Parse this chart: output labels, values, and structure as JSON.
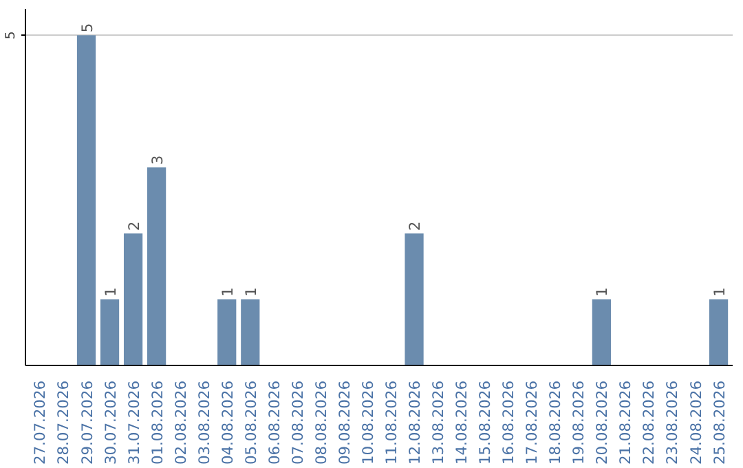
{
  "chart_data": {
    "type": "bar",
    "categories": [
      "27.07.2026",
      "28.07.2026",
      "29.07.2026",
      "30.07.2026",
      "31.07.2026",
      "01.08.2026",
      "02.08.2026",
      "03.08.2026",
      "04.08.2026",
      "05.08.2026",
      "06.08.2026",
      "07.08.2026",
      "08.08.2026",
      "09.08.2026",
      "10.08.2026",
      "11.08.2026",
      "12.08.2026",
      "13.08.2026",
      "14.08.2026",
      "15.08.2026",
      "16.08.2026",
      "17.08.2026",
      "18.08.2026",
      "19.08.2026",
      "20.08.2026",
      "21.08.2026",
      "22.08.2026",
      "23.08.2026",
      "24.08.2026",
      "25.08.2026"
    ],
    "values": [
      0,
      0,
      5,
      1,
      2,
      3,
      0,
      0,
      1,
      1,
      0,
      0,
      0,
      0,
      0,
      0,
      2,
      0,
      0,
      0,
      0,
      0,
      0,
      0,
      1,
      0,
      0,
      0,
      0,
      1
    ],
    "value_labels": [
      null,
      null,
      "5",
      "1",
      "2",
      "3",
      null,
      null,
      "1",
      "1",
      null,
      null,
      null,
      null,
      null,
      null,
      "2",
      null,
      null,
      null,
      null,
      null,
      null,
      null,
      "1",
      null,
      null,
      null,
      null,
      "1"
    ],
    "color": "#6b8cae",
    "ylim": [
      0,
      5.4
    ],
    "yticks": [
      5
    ],
    "grid": "y"
  }
}
